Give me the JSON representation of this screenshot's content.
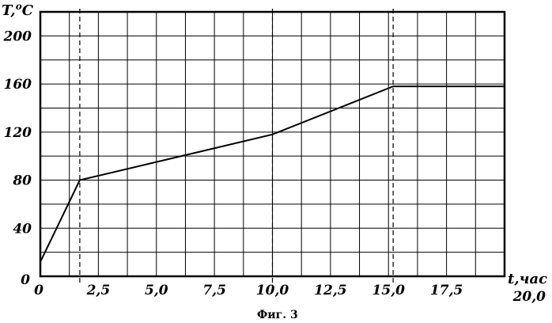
{
  "chart_data": {
    "type": "line",
    "title": "",
    "xlabel": "t,час",
    "ylabel": "T,ºC",
    "ylabel_main": "T,",
    "ylabel_sup": "o",
    "ylabel_unit": "C",
    "xlim": [
      0,
      20
    ],
    "ylim": [
      0,
      220
    ],
    "grid": true,
    "x_tick_values": [
      0,
      2.5,
      5,
      7.5,
      10,
      12.5,
      15,
      17.5,
      20
    ],
    "x_tick_labels": [
      "0",
      "2,5",
      "5,0",
      "7,5",
      "10,0",
      "12,5",
      "15,0",
      "17,5",
      "20,0"
    ],
    "y_tick_values": [
      0,
      40,
      80,
      120,
      160,
      200
    ],
    "y_tick_labels": [
      "0",
      "40",
      "80",
      "120",
      "160",
      "200"
    ],
    "grid_x_values": [
      0,
      1.25,
      2.5,
      3.75,
      5,
      6.25,
      7.5,
      8.75,
      10,
      11.25,
      12.5,
      13.75,
      15,
      16.25,
      17.5,
      18.75,
      20
    ],
    "grid_y_values": [
      20,
      40,
      60,
      80,
      100,
      120,
      140,
      160,
      180,
      200,
      220
    ],
    "dashed_x": [
      1.7,
      10.0,
      15.2
    ],
    "series": [
      {
        "x": [
          0,
          1.7,
          10.0,
          15.2,
          20
        ],
        "y": [
          12,
          80,
          118,
          158,
          158
        ]
      }
    ]
  },
  "caption": "Фиг. 3"
}
